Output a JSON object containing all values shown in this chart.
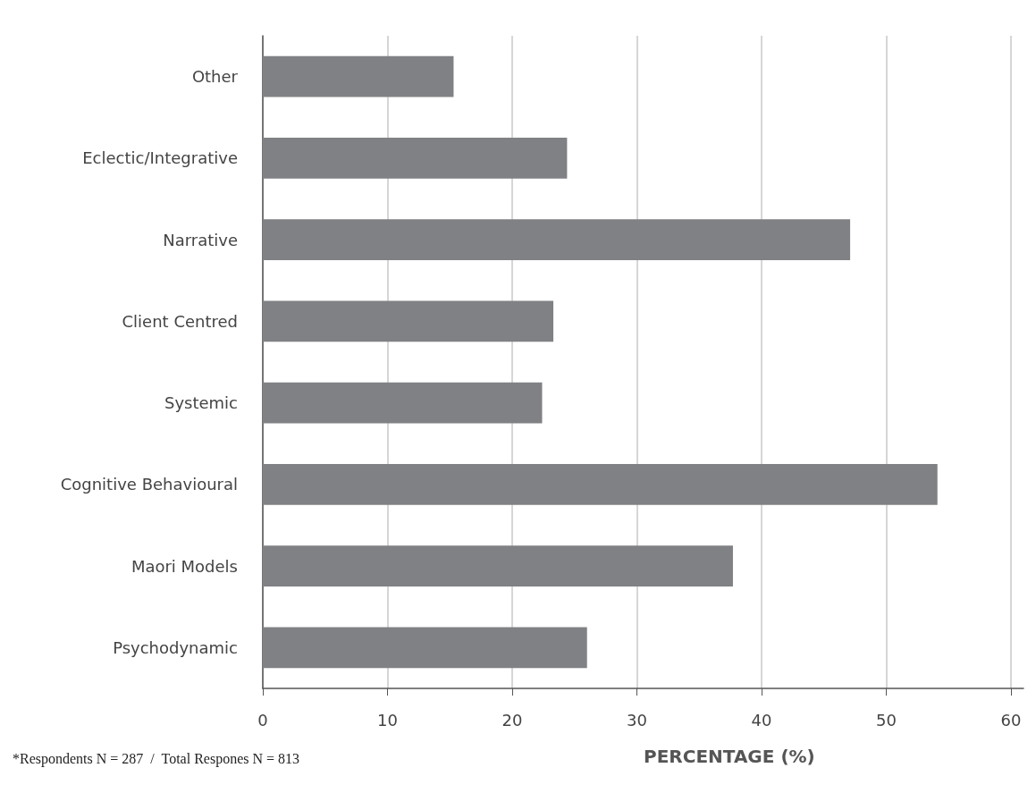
{
  "chart_data": {
    "type": "bar",
    "orientation": "horizontal",
    "xlabel": "PERCENTAGE (%)",
    "categories": [
      "Other",
      "Eclectic/Integrative",
      "Narrative",
      "Client Centred",
      "Systemic",
      "Cognitive Behavioural",
      "Maori Models",
      "Psychodynamic"
    ],
    "values": [
      15.3,
      24.4,
      47.1,
      23.3,
      22.4,
      54.1,
      37.7,
      26.0
    ],
    "color": "#808184",
    "xlim": [
      0,
      61
    ],
    "xticks": [
      0,
      10,
      20,
      30,
      40,
      50,
      60
    ],
    "grid": "x",
    "annotations": [
      "*Respondents N = 287  /  Total Respones N = 813"
    ]
  }
}
